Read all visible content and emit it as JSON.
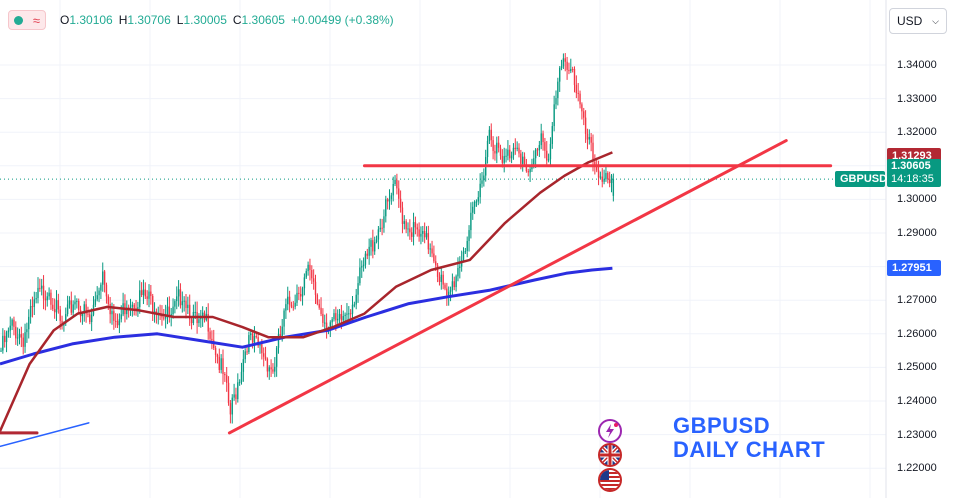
{
  "header": {
    "ohlc": [
      {
        "label": "O",
        "value": "1.30106"
      },
      {
        "label": "H",
        "value": "1.30706"
      },
      {
        "label": "L",
        "value": "1.30005"
      },
      {
        "label": "C",
        "value": "1.30605"
      }
    ],
    "change": "+0.00499 (+0.38%)",
    "currency": "USD",
    "colors": {
      "up": "#22ab94",
      "down": "#f23645"
    }
  },
  "title": {
    "line1": "GBPUSD",
    "line2": "DAILY CHART"
  },
  "logos": [
    "lightning-circle-logo",
    "uk-flag-icon",
    "us-flag-icon"
  ],
  "chart_data": {
    "type": "candlestick",
    "symbol": "GBPUSD",
    "timeframe": "daily",
    "ylim": [
      1.215,
      1.35
    ],
    "y_ticks": [
      "1.34000",
      "1.33000",
      "1.32000",
      "1.31000",
      "1.30000",
      "1.29000",
      "1.28000",
      "1.27000",
      "1.26000",
      "1.25000",
      "1.24000",
      "1.23000",
      "1.22000"
    ],
    "price_labels": {
      "resistance": {
        "value": 1.31293,
        "text": "1.31293",
        "color": "#b22833"
      },
      "current": {
        "value": 1.30605,
        "text": "1.30605",
        "symbol": "GBPUSD",
        "countdown": "14:18:35",
        "color": "#089981"
      },
      "ma_blue": {
        "value": 1.27951,
        "text": "1.27951",
        "color": "#2962ff"
      }
    },
    "path_anchors": [
      [
        0,
        1.255
      ],
      [
        6,
        1.262
      ],
      [
        12,
        1.259
      ],
      [
        20,
        1.271
      ],
      [
        26,
        1.274
      ],
      [
        33,
        1.261
      ],
      [
        40,
        1.271
      ],
      [
        48,
        1.263
      ],
      [
        55,
        1.279
      ],
      [
        62,
        1.261
      ],
      [
        68,
        1.27
      ],
      [
        76,
        1.271
      ],
      [
        84,
        1.269
      ],
      [
        92,
        1.264
      ],
      [
        98,
        1.273
      ],
      [
        106,
        1.262
      ],
      [
        112,
        1.264
      ],
      [
        121,
        1.245
      ],
      [
        124,
        1.236
      ],
      [
        133,
        1.258
      ],
      [
        141,
        1.255
      ],
      [
        147,
        1.249
      ],
      [
        154,
        1.267
      ],
      [
        166,
        1.278
      ],
      [
        174,
        1.265
      ],
      [
        182,
        1.262
      ],
      [
        190,
        1.27
      ],
      [
        202,
        1.289
      ],
      [
        213,
        1.303
      ],
      [
        218,
        1.294
      ],
      [
        227,
        1.288
      ],
      [
        233,
        1.286
      ],
      [
        241,
        1.269
      ],
      [
        251,
        1.287
      ],
      [
        258,
        1.3
      ],
      [
        264,
        1.321
      ],
      [
        271,
        1.31
      ],
      [
        279,
        1.318
      ],
      [
        285,
        1.305
      ],
      [
        292,
        1.32
      ],
      [
        296,
        1.312
      ],
      [
        301,
        1.334
      ],
      [
        305,
        1.342
      ],
      [
        309,
        1.339
      ],
      [
        315,
        1.321
      ],
      [
        321,
        1.31
      ],
      [
        326,
        1.307
      ],
      [
        329,
        1.302
      ],
      [
        331,
        1.306
      ]
    ],
    "ma_red": [
      [
        0,
        1.231
      ],
      [
        16,
        1.251
      ],
      [
        29,
        1.261
      ],
      [
        42,
        1.266
      ],
      [
        58,
        1.268
      ],
      [
        75,
        1.267
      ],
      [
        94,
        1.265
      ],
      [
        115,
        1.265
      ],
      [
        131,
        1.262
      ],
      [
        145,
        1.259
      ],
      [
        164,
        1.259
      ],
      [
        180,
        1.262
      ],
      [
        197,
        1.266
      ],
      [
        214,
        1.274
      ],
      [
        233,
        1.279
      ],
      [
        254,
        1.282
      ],
      [
        273,
        1.293
      ],
      [
        292,
        1.302
      ],
      [
        305,
        1.307
      ],
      [
        318,
        1.311
      ],
      [
        331,
        1.314
      ]
    ],
    "ma_blue": [
      [
        0,
        1.251
      ],
      [
        18,
        1.254
      ],
      [
        39,
        1.257
      ],
      [
        62,
        1.259
      ],
      [
        85,
        1.26
      ],
      [
        108,
        1.258
      ],
      [
        131,
        1.256
      ],
      [
        154,
        1.259
      ],
      [
        177,
        1.261
      ],
      [
        198,
        1.265
      ],
      [
        221,
        1.269
      ],
      [
        242,
        1.271
      ],
      [
        265,
        1.273
      ],
      [
        289,
        1.276
      ],
      [
        306,
        1.278
      ],
      [
        320,
        1.279
      ],
      [
        331,
        1.2795
      ]
    ],
    "drawings": [
      {
        "name": "resistance-line",
        "from": [
          197,
          1.31
        ],
        "to": [
          449,
          1.31
        ],
        "color": "#f23645"
      },
      {
        "name": "main-uptrend-line",
        "from": [
          124,
          1.2305
        ],
        "to": [
          425,
          1.3175
        ],
        "color": "#f23645"
      },
      {
        "name": "early-support-line",
        "from": [
          0,
          1.2305
        ],
        "to": [
          20,
          1.2305
        ],
        "color": "#b22833"
      },
      {
        "name": "early-trend-line",
        "from": [
          0,
          1.2265
        ],
        "to": [
          48,
          1.2335
        ],
        "color": "#2962ff"
      }
    ]
  }
}
